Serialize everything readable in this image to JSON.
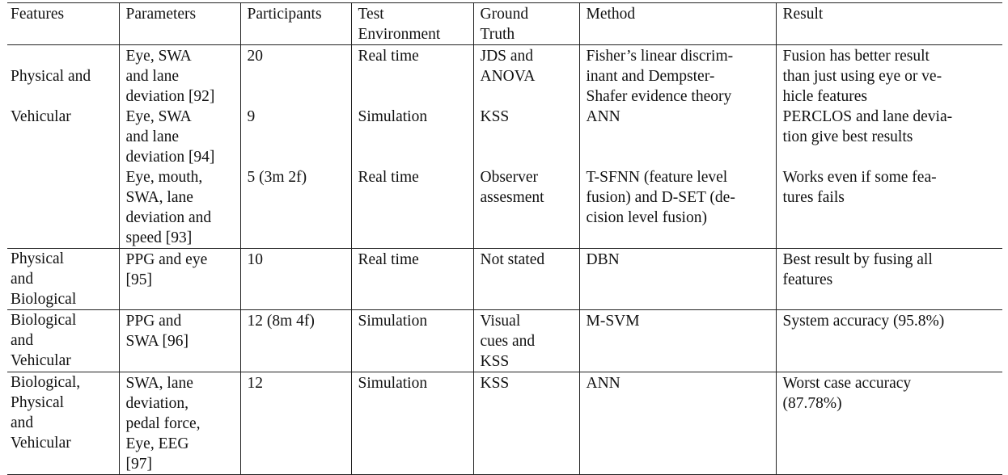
{
  "headers": [
    "Features",
    "Parameters",
    "Participants",
    "Test\nEnvironment",
    "Ground\nTruth",
    "Method",
    "Result"
  ],
  "groups": [
    {
      "feature": "Physical and\n\nVehicular",
      "rows": [
        {
          "parameters": "Eye, SWA\nand lane\ndeviation [92]",
          "participants": "20",
          "environment": "Real time",
          "ground_truth": "JDS and\nANOVA",
          "method": "Fisher’s linear discrim-\ninant and Dempster-\nShafer evidence theory",
          "result": "Fusion has better result\nthan just using eye or ve-\nhicle features"
        },
        {
          "parameters": "Eye, SWA\nand lane\ndeviation [94]",
          "participants": "9",
          "environment": "Simulation",
          "ground_truth": "KSS",
          "method": "ANN",
          "result": "PERCLOS and lane devia-\ntion give best results"
        },
        {
          "parameters": "Eye, mouth,\nSWA, lane\ndeviation and\nspeed [93]",
          "participants": "5 (3m 2f)",
          "environment": "Real time",
          "ground_truth": "Observer\nassesment",
          "method": "T-SFNN (feature level\nfusion) and D-SET (de-\ncision level fusion)",
          "result": "Works even if some fea-\ntures fails"
        }
      ]
    },
    {
      "feature": "Physical\nand\nBiological",
      "rows": [
        {
          "parameters": "PPG and eye\n[95]",
          "participants": "10",
          "environment": "Real time",
          "ground_truth": "Not stated",
          "method": "DBN",
          "result": "Best result by fusing all\nfeatures"
        }
      ]
    },
    {
      "feature": "Biological\nand\nVehicular",
      "rows": [
        {
          "parameters": "PPG and\nSWA [96]",
          "participants": "12 (8m 4f)",
          "environment": "Simulation",
          "ground_truth": "Visual\ncues and\nKSS",
          "method": "M-SVM",
          "result": "System accuracy (95.8%)"
        }
      ]
    },
    {
      "feature": "Biological,\nPhysical\nand\nVehicular",
      "rows": [
        {
          "parameters": "SWA, lane\ndeviation,\npedal force,\nEye, EEG\n[97]",
          "participants": "12",
          "environment": "Simulation",
          "ground_truth": "KSS",
          "method": "ANN",
          "result": "Worst case accuracy\n(87.78%)"
        }
      ]
    }
  ]
}
